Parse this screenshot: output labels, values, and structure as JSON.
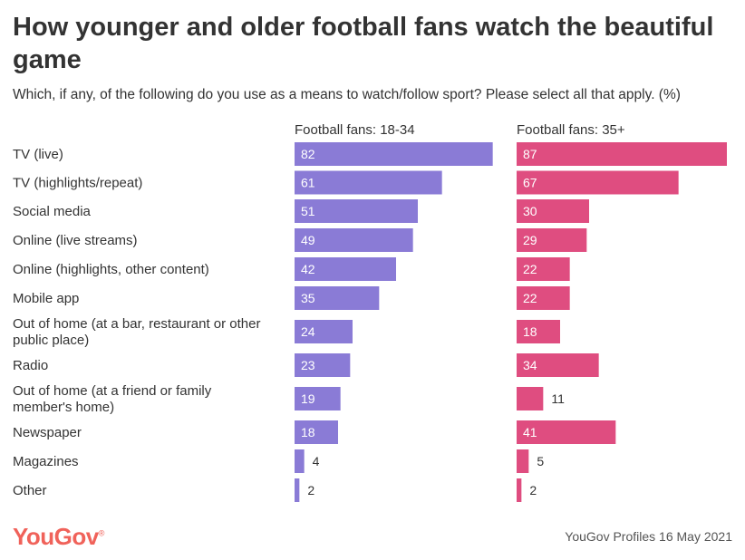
{
  "header": {
    "title": "How younger and older football fans watch the beautiful game",
    "subtitle": "Which, if any, of the following do you use as a means to watch/follow sport? Please select all that apply. (%)"
  },
  "footer": {
    "logo": "YouGov",
    "source": "YouGov Profiles 16 May 2021"
  },
  "colors": {
    "series_18_34": "#8a7bd6",
    "series_35_plus": "#df4d80",
    "logo": "#f0625a",
    "text": "#333333"
  },
  "chart_data": {
    "type": "bar",
    "orientation": "horizontal",
    "title": "How younger and older football fans watch the beautiful game",
    "subtitle": "Which, if any, of the following do you use as a means to watch/follow sport? Please select all that apply. (%)",
    "categories": [
      "TV (live)",
      "TV (highlights/repeat)",
      "Social media",
      "Online (live streams)",
      "Online (highlights, other content)",
      "Mobile app",
      "Out of home (at a bar, restaurant or other public place)",
      "Radio",
      "Out of home (at a friend or family member's home)",
      "Newspaper",
      "Magazines",
      "Other"
    ],
    "category_lines": [
      [
        "TV (live)"
      ],
      [
        "TV (highlights/repeat)"
      ],
      [
        "Social media"
      ],
      [
        "Online (live streams)"
      ],
      [
        "Online (highlights, other content)"
      ],
      [
        "Mobile app"
      ],
      [
        "Out of home (at a bar, restaurant or other",
        "public place)"
      ],
      [
        "Radio"
      ],
      [
        "Out of home (at a friend or family",
        "member's home)"
      ],
      [
        "Newspaper"
      ],
      [
        "Magazines"
      ],
      [
        "Other"
      ]
    ],
    "series": [
      {
        "name": "Football fans: 18-34",
        "color": "#8a7bd6",
        "values": [
          82,
          61,
          51,
          49,
          42,
          35,
          24,
          23,
          19,
          18,
          4,
          2
        ]
      },
      {
        "name": "Football fans: 35+",
        "color": "#df4d80",
        "values": [
          87,
          67,
          30,
          29,
          22,
          22,
          18,
          34,
          11,
          41,
          5,
          2
        ]
      }
    ],
    "xlim": [
      0,
      87
    ],
    "grid": false,
    "legend": "panel titles above each column"
  }
}
